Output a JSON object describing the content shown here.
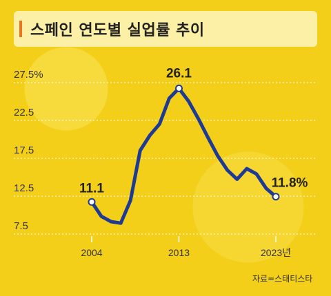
{
  "title": "스페인 연도별 실업률 추이",
  "source": "자료=스태티스타",
  "colors": {
    "line": "#1f3a93",
    "accent": "#e87722",
    "background": "#f3cf1a"
  },
  "chart_data": {
    "type": "line",
    "title": "스페인 연도별 실업률 추이",
    "xlabel": "",
    "ylabel": "",
    "ylim": [
      7.5,
      27.5
    ],
    "yticks": [
      "27.5%",
      "22.5",
      "17.5",
      "12.5",
      "7.5"
    ],
    "ytick_values": [
      27.5,
      22.5,
      17.5,
      12.5,
      7.5
    ],
    "xticks": [
      "2004",
      "2013",
      "2023년"
    ],
    "xtick_values": [
      2004,
      2013,
      2023
    ],
    "grid": true,
    "series": [
      {
        "x": [
          2004,
          2005,
          2006,
          2007,
          2008,
          2009,
          2010,
          2011,
          2012,
          2013,
          2014,
          2015,
          2016,
          2017,
          2018,
          2019,
          2020,
          2021,
          2022,
          2023
        ],
        "y": [
          11.1,
          9.2,
          8.5,
          8.3,
          11.3,
          17.9,
          19.9,
          21.4,
          24.8,
          26.1,
          24.4,
          22.1,
          19.6,
          17.2,
          15.3,
          14.1,
          15.5,
          14.8,
          12.9,
          11.8
        ]
      }
    ],
    "annotations": [
      {
        "x": 2004,
        "y": 11.1,
        "text": "11.1"
      },
      {
        "x": 2013,
        "y": 26.1,
        "text": "26.1"
      },
      {
        "x": 2023,
        "y": 11.8,
        "text": "11.8%"
      }
    ]
  }
}
